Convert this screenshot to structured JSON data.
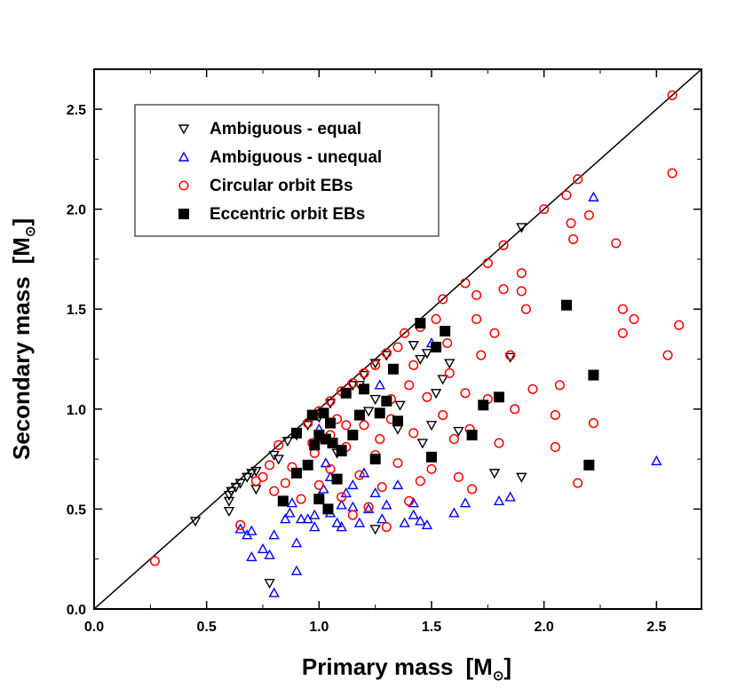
{
  "chart_data": {
    "type": "scatter",
    "xlabel": "Primary mass",
    "ylabel": "Secondary mass",
    "unit_symbol": "M",
    "unit_subscript": "⊙",
    "xlim": [
      0.0,
      2.7
    ],
    "ylim": [
      0.0,
      2.7
    ],
    "xticks": [
      "0.0",
      "0.5",
      "1.0",
      "1.5",
      "2.0",
      "2.5"
    ],
    "yticks": [
      "0.0",
      "0.5",
      "1.0",
      "1.5",
      "2.0",
      "2.5"
    ],
    "reference_line": {
      "name": "equal mass",
      "x": [
        0,
        2.7
      ],
      "y": [
        0,
        2.7
      ]
    },
    "legend_position": "top-left",
    "colors": {
      "amb_equal": "#000000",
      "amb_unequal": "#0000ff",
      "circular": "#ff0000",
      "eccentric": "#000000"
    },
    "series": [
      {
        "name": "Ambiguous - equal",
        "key": "amb_equal",
        "marker": "triangle-down",
        "points": [
          [
            0.45,
            0.44
          ],
          [
            0.6,
            0.49
          ],
          [
            0.6,
            0.54
          ],
          [
            0.6,
            0.57
          ],
          [
            0.61,
            0.59
          ],
          [
            0.63,
            0.61
          ],
          [
            0.65,
            0.63
          ],
          [
            0.68,
            0.66
          ],
          [
            0.7,
            0.68
          ],
          [
            0.72,
            0.69
          ],
          [
            0.72,
            0.6
          ],
          [
            0.78,
            0.13
          ],
          [
            0.8,
            0.77
          ],
          [
            0.82,
            0.75
          ],
          [
            0.86,
            0.84
          ],
          [
            0.9,
            0.87
          ],
          [
            0.95,
            0.92
          ],
          [
            1.0,
            0.96
          ],
          [
            1.05,
            1.03
          ],
          [
            1.08,
            0.78
          ],
          [
            1.1,
            0.8
          ],
          [
            1.15,
            1.12
          ],
          [
            1.2,
            1.17
          ],
          [
            1.25,
            1.05
          ],
          [
            1.25,
            1.23
          ],
          [
            1.27,
            0.98
          ],
          [
            1.3,
            1.27
          ],
          [
            1.36,
            1.02
          ],
          [
            1.42,
            1.32
          ],
          [
            1.45,
            1.25
          ],
          [
            1.46,
            0.83
          ],
          [
            1.48,
            1.28
          ],
          [
            1.5,
            0.92
          ],
          [
            1.52,
            1.08
          ],
          [
            1.55,
            1.15
          ],
          [
            1.58,
            1.23
          ],
          [
            1.62,
            0.89
          ],
          [
            1.78,
            0.68
          ],
          [
            1.85,
            1.26
          ],
          [
            1.9,
            1.91
          ],
          [
            1.9,
            0.66
          ],
          [
            1.25,
            0.4
          ],
          [
            1.35,
            0.9
          ],
          [
            1.18,
            1.12
          ],
          [
            1.22,
            0.99
          ]
        ]
      },
      {
        "name": "Ambiguous - unequal",
        "key": "amb_unequal",
        "marker": "triangle-up",
        "points": [
          [
            0.65,
            0.4
          ],
          [
            0.68,
            0.37
          ],
          [
            0.7,
            0.39
          ],
          [
            0.7,
            0.26
          ],
          [
            0.75,
            0.3
          ],
          [
            0.78,
            0.27
          ],
          [
            0.8,
            0.08
          ],
          [
            0.8,
            0.37
          ],
          [
            0.85,
            0.45
          ],
          [
            0.87,
            0.48
          ],
          [
            0.88,
            0.53
          ],
          [
            0.9,
            0.33
          ],
          [
            0.9,
            0.19
          ],
          [
            0.92,
            0.45
          ],
          [
            0.95,
            0.45
          ],
          [
            0.98,
            0.41
          ],
          [
            1.0,
            0.56
          ],
          [
            1.02,
            0.6
          ],
          [
            1.05,
            0.48
          ],
          [
            1.05,
            0.66
          ],
          [
            1.08,
            0.43
          ],
          [
            1.1,
            0.52
          ],
          [
            1.1,
            0.41
          ],
          [
            1.12,
            0.58
          ],
          [
            1.15,
            0.62
          ],
          [
            1.15,
            0.51
          ],
          [
            1.18,
            0.43
          ],
          [
            1.2,
            0.68
          ],
          [
            1.22,
            0.5
          ],
          [
            1.25,
            0.58
          ],
          [
            1.28,
            0.45
          ],
          [
            1.3,
            0.52
          ],
          [
            1.35,
            0.62
          ],
          [
            1.38,
            0.43
          ],
          [
            1.42,
            0.47
          ],
          [
            1.42,
            0.53
          ],
          [
            1.45,
            0.44
          ],
          [
            1.48,
            0.42
          ],
          [
            1.5,
            1.33
          ],
          [
            1.6,
            0.48
          ],
          [
            1.65,
            0.53
          ],
          [
            1.8,
            0.54
          ],
          [
            1.85,
            0.56
          ],
          [
            2.22,
            2.06
          ],
          [
            2.5,
            0.74
          ],
          [
            1.0,
            0.9
          ],
          [
            1.03,
            0.73
          ],
          [
            1.27,
            1.12
          ],
          [
            0.98,
            0.47
          ]
        ]
      },
      {
        "name": "Circular orbit EBs",
        "key": "circular",
        "marker": "circle",
        "points": [
          [
            0.27,
            0.24
          ],
          [
            0.65,
            0.42
          ],
          [
            0.72,
            0.64
          ],
          [
            0.75,
            0.66
          ],
          [
            0.78,
            0.72
          ],
          [
            0.8,
            0.59
          ],
          [
            0.82,
            0.82
          ],
          [
            0.85,
            0.63
          ],
          [
            0.88,
            0.71
          ],
          [
            0.9,
            0.88
          ],
          [
            0.92,
            0.55
          ],
          [
            0.95,
            0.93
          ],
          [
            0.98,
            0.78
          ],
          [
            1.0,
            0.99
          ],
          [
            1.0,
            0.62
          ],
          [
            1.02,
            0.85
          ],
          [
            1.05,
            1.04
          ],
          [
            1.05,
            0.7
          ],
          [
            1.08,
            0.95
          ],
          [
            1.1,
            1.09
          ],
          [
            1.1,
            0.56
          ],
          [
            1.12,
            0.81
          ],
          [
            1.15,
            1.13
          ],
          [
            1.15,
            0.47
          ],
          [
            1.18,
            0.67
          ],
          [
            1.2,
            1.18
          ],
          [
            1.2,
            0.92
          ],
          [
            1.22,
            0.51
          ],
          [
            1.25,
            1.22
          ],
          [
            1.25,
            0.77
          ],
          [
            1.28,
            0.61
          ],
          [
            1.3,
            1.28
          ],
          [
            1.3,
            0.41
          ],
          [
            1.32,
            0.95
          ],
          [
            1.35,
            1.31
          ],
          [
            1.35,
            0.73
          ],
          [
            1.38,
            1.38
          ],
          [
            1.4,
            1.12
          ],
          [
            1.4,
            0.54
          ],
          [
            1.42,
            0.88
          ],
          [
            1.45,
            1.41
          ],
          [
            1.45,
            0.64
          ],
          [
            1.48,
            1.06
          ],
          [
            1.5,
            0.7
          ],
          [
            1.52,
            1.45
          ],
          [
            1.55,
            1.55
          ],
          [
            1.55,
            0.97
          ],
          [
            1.58,
            1.18
          ],
          [
            1.6,
            0.85
          ],
          [
            1.62,
            0.66
          ],
          [
            1.65,
            1.63
          ],
          [
            1.65,
            1.08
          ],
          [
            1.68,
            0.6
          ],
          [
            1.7,
            1.57
          ],
          [
            1.7,
            1.45
          ],
          [
            1.72,
            1.27
          ],
          [
            1.75,
            1.73
          ],
          [
            1.75,
            1.05
          ],
          [
            1.78,
            1.38
          ],
          [
            1.8,
            0.83
          ],
          [
            1.82,
            1.82
          ],
          [
            1.82,
            1.6
          ],
          [
            1.85,
            1.27
          ],
          [
            1.87,
            1.0
          ],
          [
            1.9,
            1.68
          ],
          [
            1.9,
            1.59
          ],
          [
            1.92,
            1.5
          ],
          [
            1.95,
            1.1
          ],
          [
            2.0,
            2.0
          ],
          [
            2.05,
            0.97
          ],
          [
            2.05,
            0.81
          ],
          [
            2.07,
            1.12
          ],
          [
            2.1,
            2.07
          ],
          [
            2.12,
            1.93
          ],
          [
            2.13,
            1.85
          ],
          [
            2.15,
            2.15
          ],
          [
            2.15,
            0.63
          ],
          [
            2.2,
            1.97
          ],
          [
            2.22,
            0.93
          ],
          [
            2.32,
            1.83
          ],
          [
            2.35,
            1.5
          ],
          [
            2.35,
            1.38
          ],
          [
            2.4,
            1.45
          ],
          [
            2.55,
            1.27
          ],
          [
            2.57,
            2.57
          ],
          [
            2.57,
            2.18
          ],
          [
            2.6,
            1.42
          ],
          [
            1.12,
            0.92
          ],
          [
            1.27,
            0.85
          ],
          [
            1.32,
            1.05
          ],
          [
            1.42,
            1.22
          ],
          [
            1.57,
            1.33
          ],
          [
            1.67,
            0.9
          ],
          [
            1.05,
            0.87
          ],
          [
            0.97,
            0.83
          ]
        ]
      },
      {
        "name": "Eccentric orbit EBs",
        "key": "eccentric",
        "marker": "square",
        "points": [
          [
            0.84,
            0.54
          ],
          [
            0.9,
            0.68
          ],
          [
            0.9,
            0.88
          ],
          [
            0.95,
            0.72
          ],
          [
            0.97,
            0.97
          ],
          [
            0.98,
            0.82
          ],
          [
            1.0,
            0.55
          ],
          [
            1.0,
            0.87
          ],
          [
            1.02,
            0.98
          ],
          [
            1.03,
            0.85
          ],
          [
            1.04,
            0.5
          ],
          [
            1.05,
            0.93
          ],
          [
            1.06,
            0.83
          ],
          [
            1.08,
            0.65
          ],
          [
            1.1,
            0.79
          ],
          [
            1.12,
            1.08
          ],
          [
            1.15,
            0.87
          ],
          [
            1.18,
            0.97
          ],
          [
            1.2,
            1.1
          ],
          [
            1.25,
            0.75
          ],
          [
            1.27,
            0.98
          ],
          [
            1.3,
            1.04
          ],
          [
            1.33,
            1.2
          ],
          [
            1.35,
            0.94
          ],
          [
            1.45,
            1.43
          ],
          [
            1.5,
            0.76
          ],
          [
            1.52,
            1.31
          ],
          [
            1.56,
            1.39
          ],
          [
            1.68,
            0.87
          ],
          [
            1.73,
            1.02
          ],
          [
            1.8,
            1.06
          ],
          [
            2.1,
            1.52
          ],
          [
            2.2,
            0.72
          ],
          [
            2.22,
            1.17
          ]
        ]
      }
    ]
  }
}
